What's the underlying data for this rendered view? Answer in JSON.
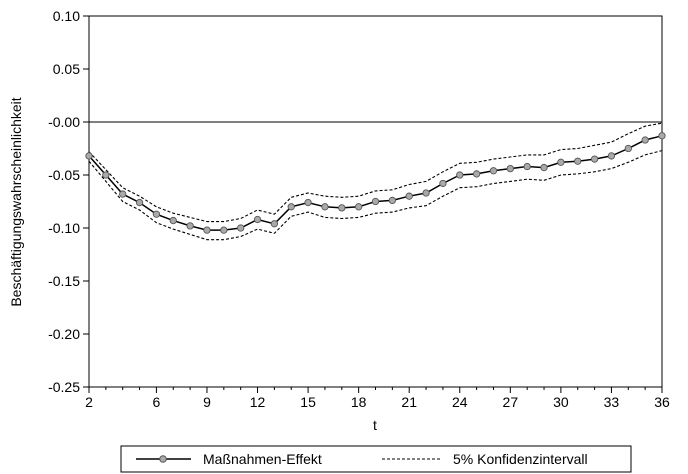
{
  "chart_data": {
    "type": "line",
    "title": "",
    "xlabel": "t",
    "ylabel": "Beschäftigungswahrscheinlichkeit",
    "xlim": [
      2,
      36
    ],
    "ylim": [
      -0.25,
      0.1
    ],
    "xticks": [
      2,
      6,
      9,
      12,
      15,
      18,
      21,
      24,
      27,
      30,
      33,
      36
    ],
    "yticks": [
      0.1,
      0.05,
      0.0,
      -0.05,
      -0.1,
      -0.15,
      -0.2,
      -0.25
    ],
    "ytick_labels": [
      "0.10",
      "0.05",
      "-0.00",
      "-0.05",
      "-0.10",
      "-0.15",
      "-0.20",
      "-0.25"
    ],
    "reference_line": 0.0,
    "grid": false,
    "legend_position": "bottom",
    "x": [
      2,
      3,
      4,
      5,
      6,
      7,
      8,
      9,
      10,
      11,
      12,
      13,
      14,
      15,
      16,
      17,
      18,
      19,
      20,
      21,
      22,
      23,
      24,
      25,
      26,
      27,
      28,
      29,
      30,
      31,
      32,
      33,
      34,
      35,
      36
    ],
    "series": [
      {
        "name": "Maßnahmen-Effekt",
        "style": "solid-with-markers",
        "values": [
          -0.032,
          -0.05,
          -0.068,
          -0.076,
          -0.087,
          -0.093,
          -0.098,
          -0.102,
          -0.102,
          -0.1,
          -0.092,
          -0.096,
          -0.08,
          -0.076,
          -0.08,
          -0.081,
          -0.08,
          -0.075,
          -0.074,
          -0.07,
          -0.067,
          -0.058,
          -0.05,
          -0.049,
          -0.046,
          -0.044,
          -0.042,
          -0.043,
          -0.038,
          -0.037,
          -0.035,
          -0.032,
          -0.025,
          -0.017,
          -0.013
        ]
      },
      {
        "name": "5% Konfidenzintervall",
        "style": "dashed",
        "upper": [
          -0.028,
          -0.045,
          -0.062,
          -0.07,
          -0.08,
          -0.086,
          -0.09,
          -0.094,
          -0.094,
          -0.091,
          -0.083,
          -0.087,
          -0.071,
          -0.067,
          -0.07,
          -0.071,
          -0.07,
          -0.065,
          -0.064,
          -0.059,
          -0.056,
          -0.047,
          -0.039,
          -0.038,
          -0.035,
          -0.033,
          -0.031,
          -0.031,
          -0.026,
          -0.025,
          -0.022,
          -0.019,
          -0.011,
          -0.004,
          -0.001
        ],
        "lower": [
          -0.037,
          -0.056,
          -0.075,
          -0.083,
          -0.095,
          -0.101,
          -0.106,
          -0.111,
          -0.111,
          -0.108,
          -0.101,
          -0.105,
          -0.089,
          -0.085,
          -0.09,
          -0.091,
          -0.09,
          -0.086,
          -0.085,
          -0.081,
          -0.079,
          -0.07,
          -0.062,
          -0.061,
          -0.058,
          -0.056,
          -0.054,
          -0.055,
          -0.05,
          -0.049,
          -0.047,
          -0.044,
          -0.038,
          -0.031,
          -0.027
        ]
      }
    ],
    "colors": {
      "effect_line": "#000000",
      "marker_fill": "#a9a9a9",
      "ci_line": "#000000",
      "zero_line": "#000000"
    }
  }
}
